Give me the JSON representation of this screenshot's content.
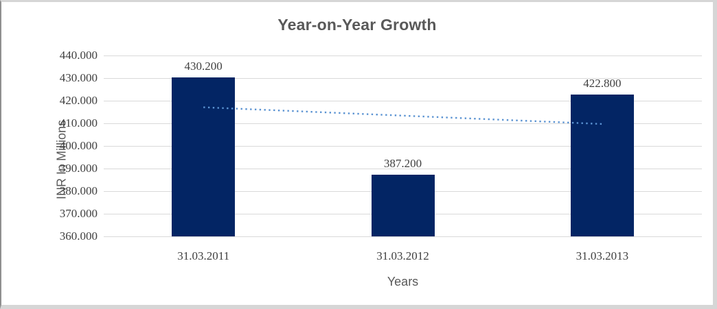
{
  "chart_data": {
    "type": "bar",
    "title": "Year-on-Year Growth",
    "xlabel": "Years",
    "ylabel": "INR In Millions",
    "categories": [
      "31.03.2011",
      "31.03.2012",
      "31.03.2013"
    ],
    "values": [
      430.2,
      387.2,
      422.8
    ],
    "data_labels": [
      "430.200",
      "387.200",
      "422.800"
    ],
    "ytick_labels": [
      "440.000",
      "430.000",
      "420.000",
      "410.000",
      "400.000",
      "390.000",
      "380.000",
      "370.000",
      "360.000"
    ],
    "ylim": [
      360,
      440
    ],
    "ytick_step": 10,
    "grid": true,
    "legend_position": "none",
    "bar_color": "#032564",
    "gridline_color": "#D9D9D9",
    "label_color": "#404040",
    "title_color": "#595959",
    "trendline": {
      "type": "linear",
      "style": "dotted",
      "color": "#5B93D2",
      "start_value": 417.1,
      "end_value": 409.7
    }
  }
}
